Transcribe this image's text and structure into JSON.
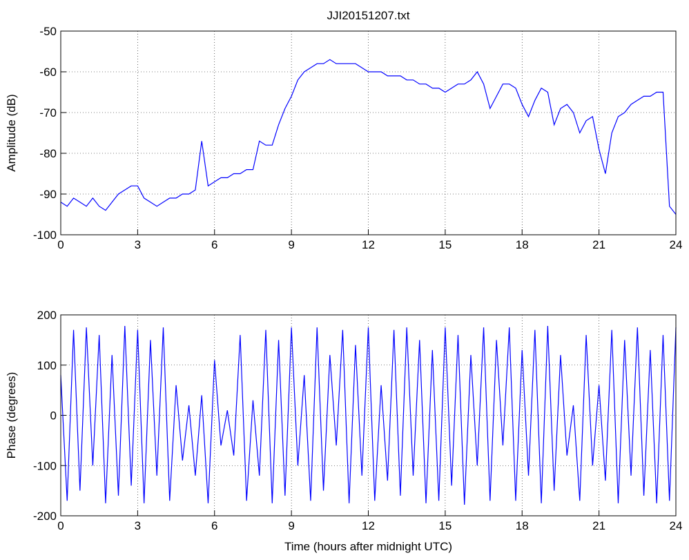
{
  "chart_data": [
    {
      "type": "line",
      "title": "JJI20151207.txt",
      "ylabel": "Amplitude (dB)",
      "color": "#0000ff",
      "grid": true,
      "x": [
        0,
        0.25,
        0.5,
        0.75,
        1,
        1.25,
        1.5,
        1.75,
        2,
        2.25,
        2.5,
        2.75,
        3,
        3.25,
        3.5,
        3.75,
        4,
        4.25,
        4.5,
        4.75,
        5,
        5.25,
        5.5,
        5.75,
        6,
        6.25,
        6.5,
        6.75,
        7,
        7.25,
        7.5,
        7.75,
        8,
        8.25,
        8.5,
        8.75,
        9,
        9.25,
        9.5,
        9.75,
        10,
        10.25,
        10.5,
        10.75,
        11,
        11.25,
        11.5,
        11.75,
        12,
        12.25,
        12.5,
        12.75,
        13,
        13.25,
        13.5,
        13.75,
        14,
        14.25,
        14.5,
        14.75,
        15,
        15.25,
        15.5,
        15.75,
        16,
        16.25,
        16.5,
        16.75,
        17,
        17.25,
        17.5,
        17.75,
        18,
        18.25,
        18.5,
        18.75,
        19,
        19.25,
        19.5,
        19.75,
        20,
        20.25,
        20.5,
        20.75,
        21,
        21.25,
        21.5,
        21.75,
        22,
        22.25,
        22.5,
        22.75,
        23,
        23.25,
        23.5,
        23.75,
        24
      ],
      "values": [
        -92,
        -93,
        -91,
        -92,
        -93,
        -91,
        -93,
        -94,
        -92,
        -90,
        -89,
        -88,
        -88,
        -91,
        -92,
        -93,
        -92,
        -91,
        -91,
        -90,
        -90,
        -89,
        -77,
        -88,
        -87,
        -86,
        -86,
        -85,
        -85,
        -84,
        -84,
        -77,
        -78,
        -78,
        -73,
        -69,
        -66,
        -62,
        -60,
        -59,
        -58,
        -58,
        -57,
        -58,
        -58,
        -58,
        -58,
        -59,
        -60,
        -60,
        -60,
        -61,
        -61,
        -61,
        -62,
        -62,
        -63,
        -63,
        -64,
        -64,
        -65,
        -64,
        -63,
        -63,
        -62,
        -60,
        -63,
        -69,
        -66,
        -63,
        -63,
        -64,
        -68,
        -71,
        -67,
        -64,
        -65,
        -73,
        -69,
        -68,
        -70,
        -75,
        -72,
        -71,
        -79,
        -85,
        -75,
        -71,
        -70,
        -68,
        -67,
        -66,
        -66,
        -65,
        -65,
        -93,
        -95
      ],
      "xlim": [
        0,
        24
      ],
      "xticks": [
        0,
        3,
        6,
        9,
        12,
        15,
        18,
        21,
        24
      ],
      "ylim": [
        -100,
        -50
      ],
      "yticks": [
        -100,
        -90,
        -80,
        -70,
        -60,
        -50
      ]
    },
    {
      "type": "line",
      "ylabel": "Phase (degrees)",
      "xlabel": "Time (hours after midnight UTC)",
      "color": "#0000ff",
      "grid": true,
      "x": [
        0,
        0.25,
        0.5,
        0.75,
        1,
        1.25,
        1.5,
        1.75,
        2,
        2.25,
        2.5,
        2.75,
        3,
        3.25,
        3.5,
        3.75,
        4,
        4.25,
        4.5,
        4.75,
        5,
        5.25,
        5.5,
        5.75,
        6,
        6.25,
        6.5,
        6.75,
        7,
        7.25,
        7.5,
        7.75,
        8,
        8.25,
        8.5,
        8.75,
        9,
        9.25,
        9.5,
        9.75,
        10,
        10.25,
        10.5,
        10.75,
        11,
        11.25,
        11.5,
        11.75,
        12,
        12.25,
        12.5,
        12.75,
        13,
        13.25,
        13.5,
        13.75,
        14,
        14.25,
        14.5,
        14.75,
        15,
        15.25,
        15.5,
        15.75,
        16,
        16.25,
        16.5,
        16.75,
        17,
        17.25,
        17.5,
        17.75,
        18,
        18.25,
        18.5,
        18.75,
        19,
        19.25,
        19.5,
        19.75,
        20,
        20.25,
        20.5,
        20.75,
        21,
        21.25,
        21.5,
        21.75,
        22,
        22.25,
        22.5,
        22.75,
        23,
        23.25,
        23.5,
        23.75,
        24
      ],
      "values": [
        80,
        -170,
        170,
        -150,
        175,
        -100,
        160,
        -175,
        120,
        -160,
        178,
        -140,
        170,
        -175,
        150,
        -120,
        175,
        -170,
        60,
        -90,
        20,
        -120,
        40,
        -175,
        110,
        -60,
        10,
        -80,
        160,
        -170,
        30,
        -120,
        170,
        -175,
        150,
        -160,
        175,
        -100,
        80,
        -170,
        175,
        -150,
        120,
        -60,
        170,
        -175,
        140,
        -120,
        175,
        -170,
        60,
        -130,
        170,
        -160,
        175,
        -120,
        150,
        -175,
        130,
        -170,
        175,
        -140,
        160,
        -178,
        120,
        -100,
        175,
        -170,
        150,
        -60,
        175,
        -170,
        130,
        -120,
        170,
        -175,
        178,
        -150,
        120,
        -80,
        20,
        -170,
        160,
        -100,
        60,
        -130,
        170,
        -175,
        150,
        -120,
        175,
        -160,
        130,
        -175,
        160,
        -170,
        175
      ],
      "xlim": [
        0,
        24
      ],
      "xticks": [
        0,
        3,
        6,
        9,
        12,
        15,
        18,
        21,
        24
      ],
      "ylim": [
        -200,
        200
      ],
      "yticks": [
        -200,
        -100,
        0,
        100,
        200
      ]
    }
  ]
}
